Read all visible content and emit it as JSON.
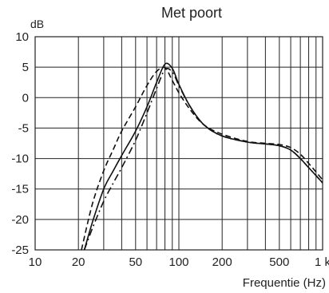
{
  "chart_data": {
    "type": "line",
    "title": "Met poort",
    "ylabel": "dB",
    "xlabel": "Frequentie (Hz)",
    "x_scale": "log",
    "xlim": [
      10,
      1000
    ],
    "ylim": [
      -25,
      10
    ],
    "grid": true,
    "x_tick_labels": [
      {
        "value": 10,
        "label": "10"
      },
      {
        "value": 20,
        "label": "20"
      },
      {
        "value": 50,
        "label": "50"
      },
      {
        "value": 100,
        "label": "100"
      },
      {
        "value": 200,
        "label": "200"
      },
      {
        "value": 500,
        "label": "500"
      },
      {
        "value": 1000,
        "label": "1 k"
      }
    ],
    "y_ticks": [
      10,
      5,
      0,
      -5,
      -10,
      -15,
      -20,
      -25
    ],
    "series": [
      {
        "style": "solid",
        "x": [
          22,
          25,
          30,
          35,
          40,
          50,
          60,
          70,
          80,
          90,
          100,
          120,
          150,
          200,
          300,
          400,
          500,
          600,
          700,
          800,
          900,
          1000
        ],
        "y": [
          -25,
          -20.5,
          -15,
          -12,
          -9.5,
          -5.5,
          -1.5,
          2.5,
          5.5,
          4.8,
          2.2,
          -1.5,
          -4.5,
          -6.3,
          -7.3,
          -7.6,
          -7.9,
          -8.6,
          -10,
          -11.5,
          -12.8,
          -14
        ]
      },
      {
        "style": "dashed",
        "x": [
          21,
          25,
          30,
          35,
          40,
          50,
          60,
          70,
          80,
          90,
          100,
          120,
          150,
          200,
          300,
          400,
          500,
          600,
          700,
          800,
          900,
          1000
        ],
        "y": [
          -25,
          -17.5,
          -12,
          -8.5,
          -5.5,
          -1.5,
          2,
          4.3,
          4.9,
          2.8,
          0.8,
          -2,
          -4.5,
          -6,
          -7.2,
          -7.5,
          -7.7,
          -8.2,
          -9.3,
          -10.8,
          -12.2,
          -13.5
        ]
      },
      {
        "style": "dashdot",
        "x": [
          22,
          25,
          30,
          35,
          40,
          50,
          60,
          70,
          80,
          90,
          100,
          120,
          150,
          200,
          300,
          400,
          500,
          600,
          700,
          800,
          900,
          1000
        ],
        "y": [
          -25,
          -21.5,
          -17,
          -14,
          -11.5,
          -7,
          -2.5,
          1.5,
          4.6,
          4.2,
          2,
          -1.5,
          -4.5,
          -6.3,
          -7.3,
          -7.6,
          -7.9,
          -8.6,
          -10,
          -11.5,
          -12.8,
          -14
        ]
      }
    ]
  }
}
